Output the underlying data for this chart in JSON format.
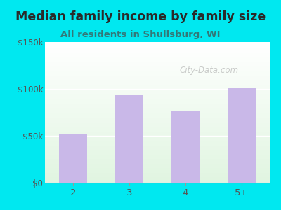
{
  "title": "Median family income by family size",
  "subtitle": "All residents in Shullsburg, WI",
  "categories": [
    "2",
    "3",
    "4",
    "5+"
  ],
  "values": [
    52000,
    93000,
    76000,
    101000
  ],
  "bar_color": "#c9b8e8",
  "title_color": "#2a2a2a",
  "subtitle_color": "#337777",
  "title_fontsize": 12.5,
  "subtitle_fontsize": 9.5,
  "tick_label_color": "#555555",
  "outer_bg_color": "#00e8f0",
  "ylim": [
    0,
    150000
  ],
  "yticks": [
    0,
    50000,
    100000,
    150000
  ],
  "ytick_labels": [
    "$0",
    "$50k",
    "$100k",
    "$150k"
  ],
  "watermark": "City-Data.com",
  "watermark_color": "#aaaaaa"
}
